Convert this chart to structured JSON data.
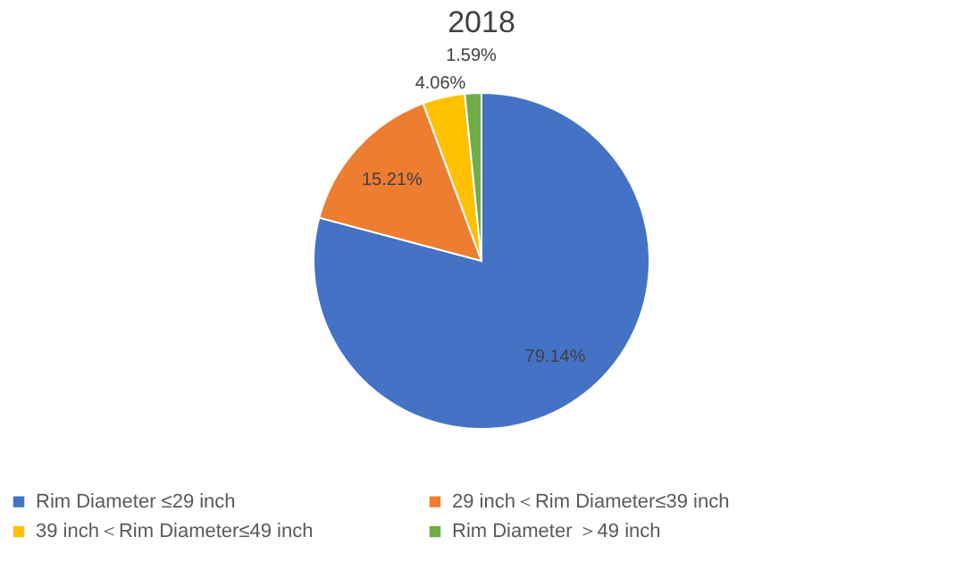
{
  "chart_data": {
    "type": "pie",
    "title": "2018",
    "categories": [
      "Rim Diameter ≤29 inch",
      "29 inch＜Rim Diameter≤39 inch",
      "39 inch＜Rim Diameter≤49 inch",
      "Rim Diameter ＞49 inch"
    ],
    "values": [
      79.14,
      15.21,
      4.06,
      1.59
    ],
    "colors": [
      "#4472c4",
      "#ed7d31",
      "#ffc000",
      "#70ad47"
    ],
    "value_labels": [
      "79.14%",
      "15.21%",
      "4.06%",
      "1.59%"
    ],
    "legend": "bottom"
  }
}
